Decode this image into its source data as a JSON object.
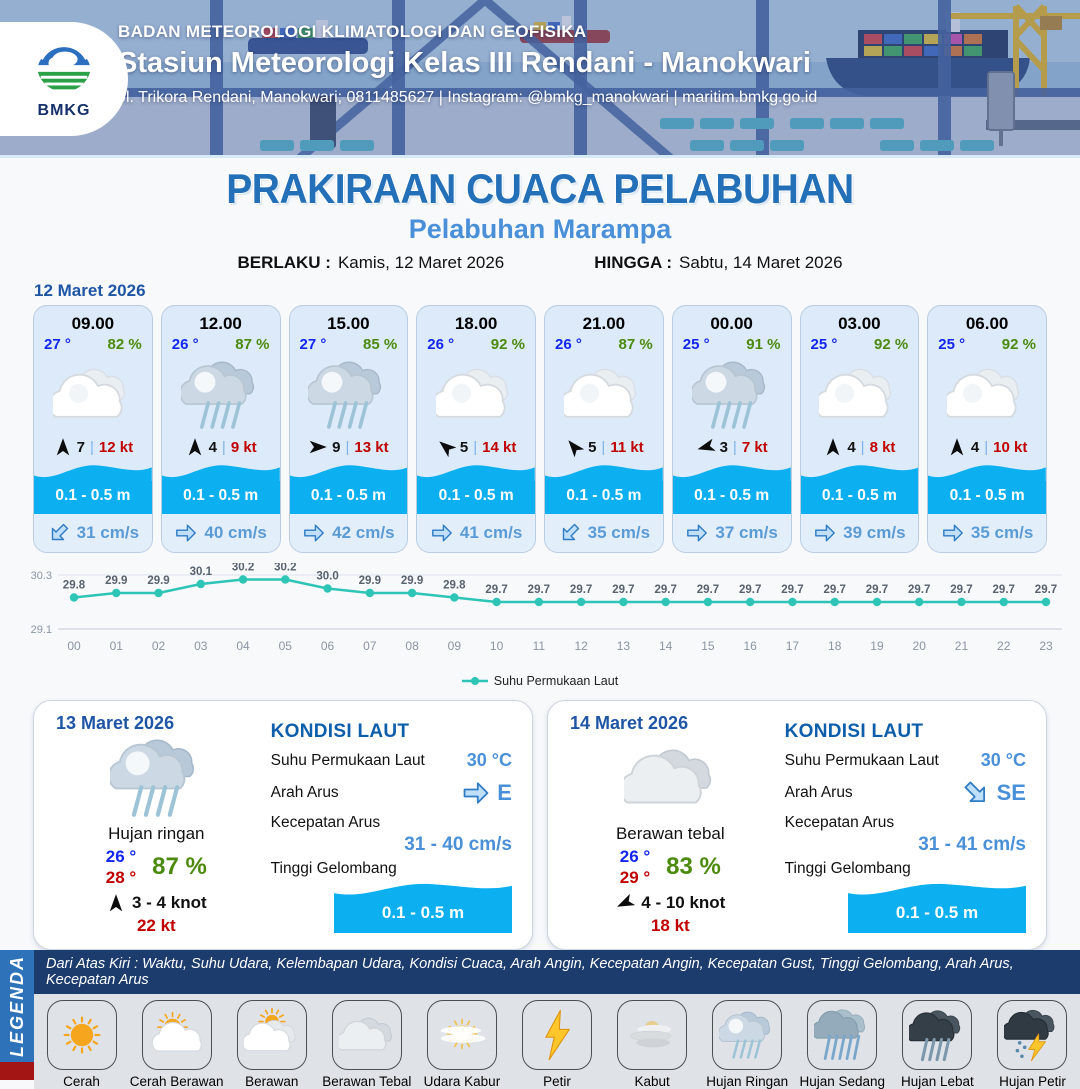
{
  "header": {
    "logo_text": "BMKG",
    "agency": "BADAN METEOROLOGI KLIMATOLOGI DAN GEOFISIKA",
    "station": "Stasiun Meteorologi Kelas III Rendani - Manokwari",
    "address": "Jl. Trikora Rendani, Manokwari; 0811485627 | Instagram: @bmkg_manokwari | maritim.bmkg.go.id"
  },
  "title": {
    "main": "PRAKIRAAN CUACA PELABUHAN",
    "subtitle": "Pelabuhan Marampa",
    "berlaku_label": "BERLAKU :",
    "berlaku_value": "Kamis, 12 Maret 2026",
    "hingga_label": "HINGGA :",
    "hingga_value": "Sabtu, 14 Maret 2026"
  },
  "forecast_date": "12 Maret 2026",
  "ui": {
    "separator": "|"
  },
  "hourly": [
    {
      "time": "09.00",
      "temp": "27 °",
      "humidity": "82 %",
      "icon": "berawan",
      "wind_dir_deg": 0,
      "wind_speed": "7",
      "gust": "12 kt",
      "wave": "0.1 - 0.5 m",
      "current_dir_deg": 135,
      "current": "31 cm/s"
    },
    {
      "time": "12.00",
      "temp": "26 °",
      "humidity": "87 %",
      "icon": "hujan-ringan",
      "wind_dir_deg": 0,
      "wind_speed": "4",
      "gust": "9 kt",
      "wave": "0.1 - 0.5 m",
      "current_dir_deg": 0,
      "current": "40 cm/s"
    },
    {
      "time": "15.00",
      "temp": "27 °",
      "humidity": "85 %",
      "icon": "hujan-ringan",
      "wind_dir_deg": 90,
      "wind_speed": "9",
      "gust": "13 kt",
      "wave": "0.1 - 0.5 m",
      "current_dir_deg": 0,
      "current": "42 cm/s"
    },
    {
      "time": "18.00",
      "temp": "26 °",
      "humidity": "92 %",
      "icon": "berawan",
      "wind_dir_deg": -50,
      "wind_speed": "5",
      "gust": "14 kt",
      "wave": "0.1 - 0.5 m",
      "current_dir_deg": 0,
      "current": "41 cm/s"
    },
    {
      "time": "21.00",
      "temp": "26 °",
      "humidity": "87 %",
      "icon": "berawan",
      "wind_dir_deg": -40,
      "wind_speed": "5",
      "gust": "11 kt",
      "wave": "0.1 - 0.5 m",
      "current_dir_deg": 135,
      "current": "35 cm/s"
    },
    {
      "time": "00.00",
      "temp": "25 °",
      "humidity": "91 %",
      "icon": "hujan-ringan",
      "wind_dir_deg": -105,
      "wind_speed": "3",
      "gust": "7 kt",
      "wave": "0.1 - 0.5 m",
      "current_dir_deg": 0,
      "current": "37 cm/s"
    },
    {
      "time": "03.00",
      "temp": "25 °",
      "humidity": "92 %",
      "icon": "berawan",
      "wind_dir_deg": 0,
      "wind_speed": "4",
      "gust": "8 kt",
      "wave": "0.1 - 0.5 m",
      "current_dir_deg": 0,
      "current": "39 cm/s"
    },
    {
      "time": "06.00",
      "temp": "25 °",
      "humidity": "92 %",
      "icon": "berawan",
      "wind_dir_deg": 0,
      "wind_speed": "4",
      "gust": "10 kt",
      "wave": "0.1 - 0.5 m",
      "current_dir_deg": 0,
      "current": "35 cm/s"
    }
  ],
  "chart_data": {
    "type": "line",
    "x": [
      "00",
      "01",
      "02",
      "03",
      "04",
      "05",
      "06",
      "07",
      "08",
      "09",
      "10",
      "11",
      "12",
      "13",
      "14",
      "15",
      "16",
      "17",
      "18",
      "19",
      "20",
      "21",
      "22",
      "23"
    ],
    "series": [
      {
        "name": "Suhu Permukaan Laut",
        "color": "#2ec4b6",
        "values": [
          29.8,
          29.9,
          29.9,
          30.1,
          30.2,
          30.2,
          30.0,
          29.9,
          29.9,
          29.8,
          29.7,
          29.7,
          29.7,
          29.7,
          29.7,
          29.7,
          29.7,
          29.7,
          29.7,
          29.7,
          29.7,
          29.7,
          29.7,
          29.7
        ]
      }
    ],
    "ylim": [
      29.1,
      30.3
    ],
    "yticks": [
      "30.3",
      "29.1"
    ],
    "grid": true,
    "legend_position": "bottom"
  },
  "sea_labels": {
    "heading": "KONDISI LAUT",
    "sst": "Suhu Permukaan Laut",
    "arah": "Arah Arus",
    "kecepatan": "Kecepatan Arus",
    "gelombang": "Tinggi Gelombang"
  },
  "daily": [
    {
      "date": "13 Maret 2026",
      "icon": "hujan-ringan",
      "condition": "Hujan ringan",
      "temp_min": "26 °",
      "temp_max": "28 °",
      "humidity": "87 %",
      "wind_dir_deg": 0,
      "wind": "3  - 4 knot",
      "gust": "22 kt",
      "sea": {
        "sst": "30 °C",
        "arah_dir_deg": 0,
        "arah": "E",
        "kecepatan": "31  - 40 cm/s",
        "gelombang": "0.1 - 0.5 m"
      }
    },
    {
      "date": "14 Maret 2026",
      "icon": "berawan-tebal",
      "condition": "Berawan tebal",
      "temp_min": "26 °",
      "temp_max": "29 °",
      "humidity": "83 %",
      "wind_dir_deg": -115,
      "wind": "4  - 10 knot",
      "gust": "18 kt",
      "sea": {
        "sst": "30 °C",
        "arah_dir_deg": 45,
        "arah": "SE",
        "kecepatan": "31 - 41 cm/s",
        "gelombang": "0.1 - 0.5 m"
      }
    }
  ],
  "legend": {
    "title": "LEGENDA",
    "description": "Dari Atas Kiri : Waktu, Suhu Udara, Kelembapan Udara, Kondisi Cuaca, Arah Angin, Kecepatan Angin, Kecepatan Gust, Tinggi Gelombang, Arah Arus, Kecepatan Arus",
    "items": [
      {
        "icon": "cerah",
        "label": "Cerah"
      },
      {
        "icon": "cerah-berawan",
        "label": "Cerah Berawan"
      },
      {
        "icon": "berawan-sun",
        "label": "Berawan"
      },
      {
        "icon": "berawan-tebal",
        "label": "Berawan Tebal"
      },
      {
        "icon": "udara-kabur",
        "label": "Udara Kabur"
      },
      {
        "icon": "petir",
        "label": "Petir"
      },
      {
        "icon": "kabut",
        "label": "Kabut"
      },
      {
        "icon": "hujan-ringan",
        "label": "Hujan Ringan"
      },
      {
        "icon": "hujan-sedang",
        "label": "Hujan Sedang"
      },
      {
        "icon": "hujan-lebat",
        "label": "Hujan Lebat"
      },
      {
        "icon": "hujan-petir",
        "label": "Hujan Petir"
      }
    ]
  },
  "colors": {
    "title_blue": "#2470b8",
    "subtitle_blue": "#4a90d9",
    "date_blue": "#1f55a5",
    "temp_blue": "#1226ee",
    "humidity_green": "#4c8a0e",
    "gust_red": "#c00000",
    "wave_cyan": "#0cb0f0",
    "current_blue": "#5b9bd5",
    "chart_line": "#2ec4b6",
    "legend_bar_navy": "#1c3c6e",
    "legend_strip_blue": "#2e72b9",
    "legend_strip_red": "#a31515"
  }
}
